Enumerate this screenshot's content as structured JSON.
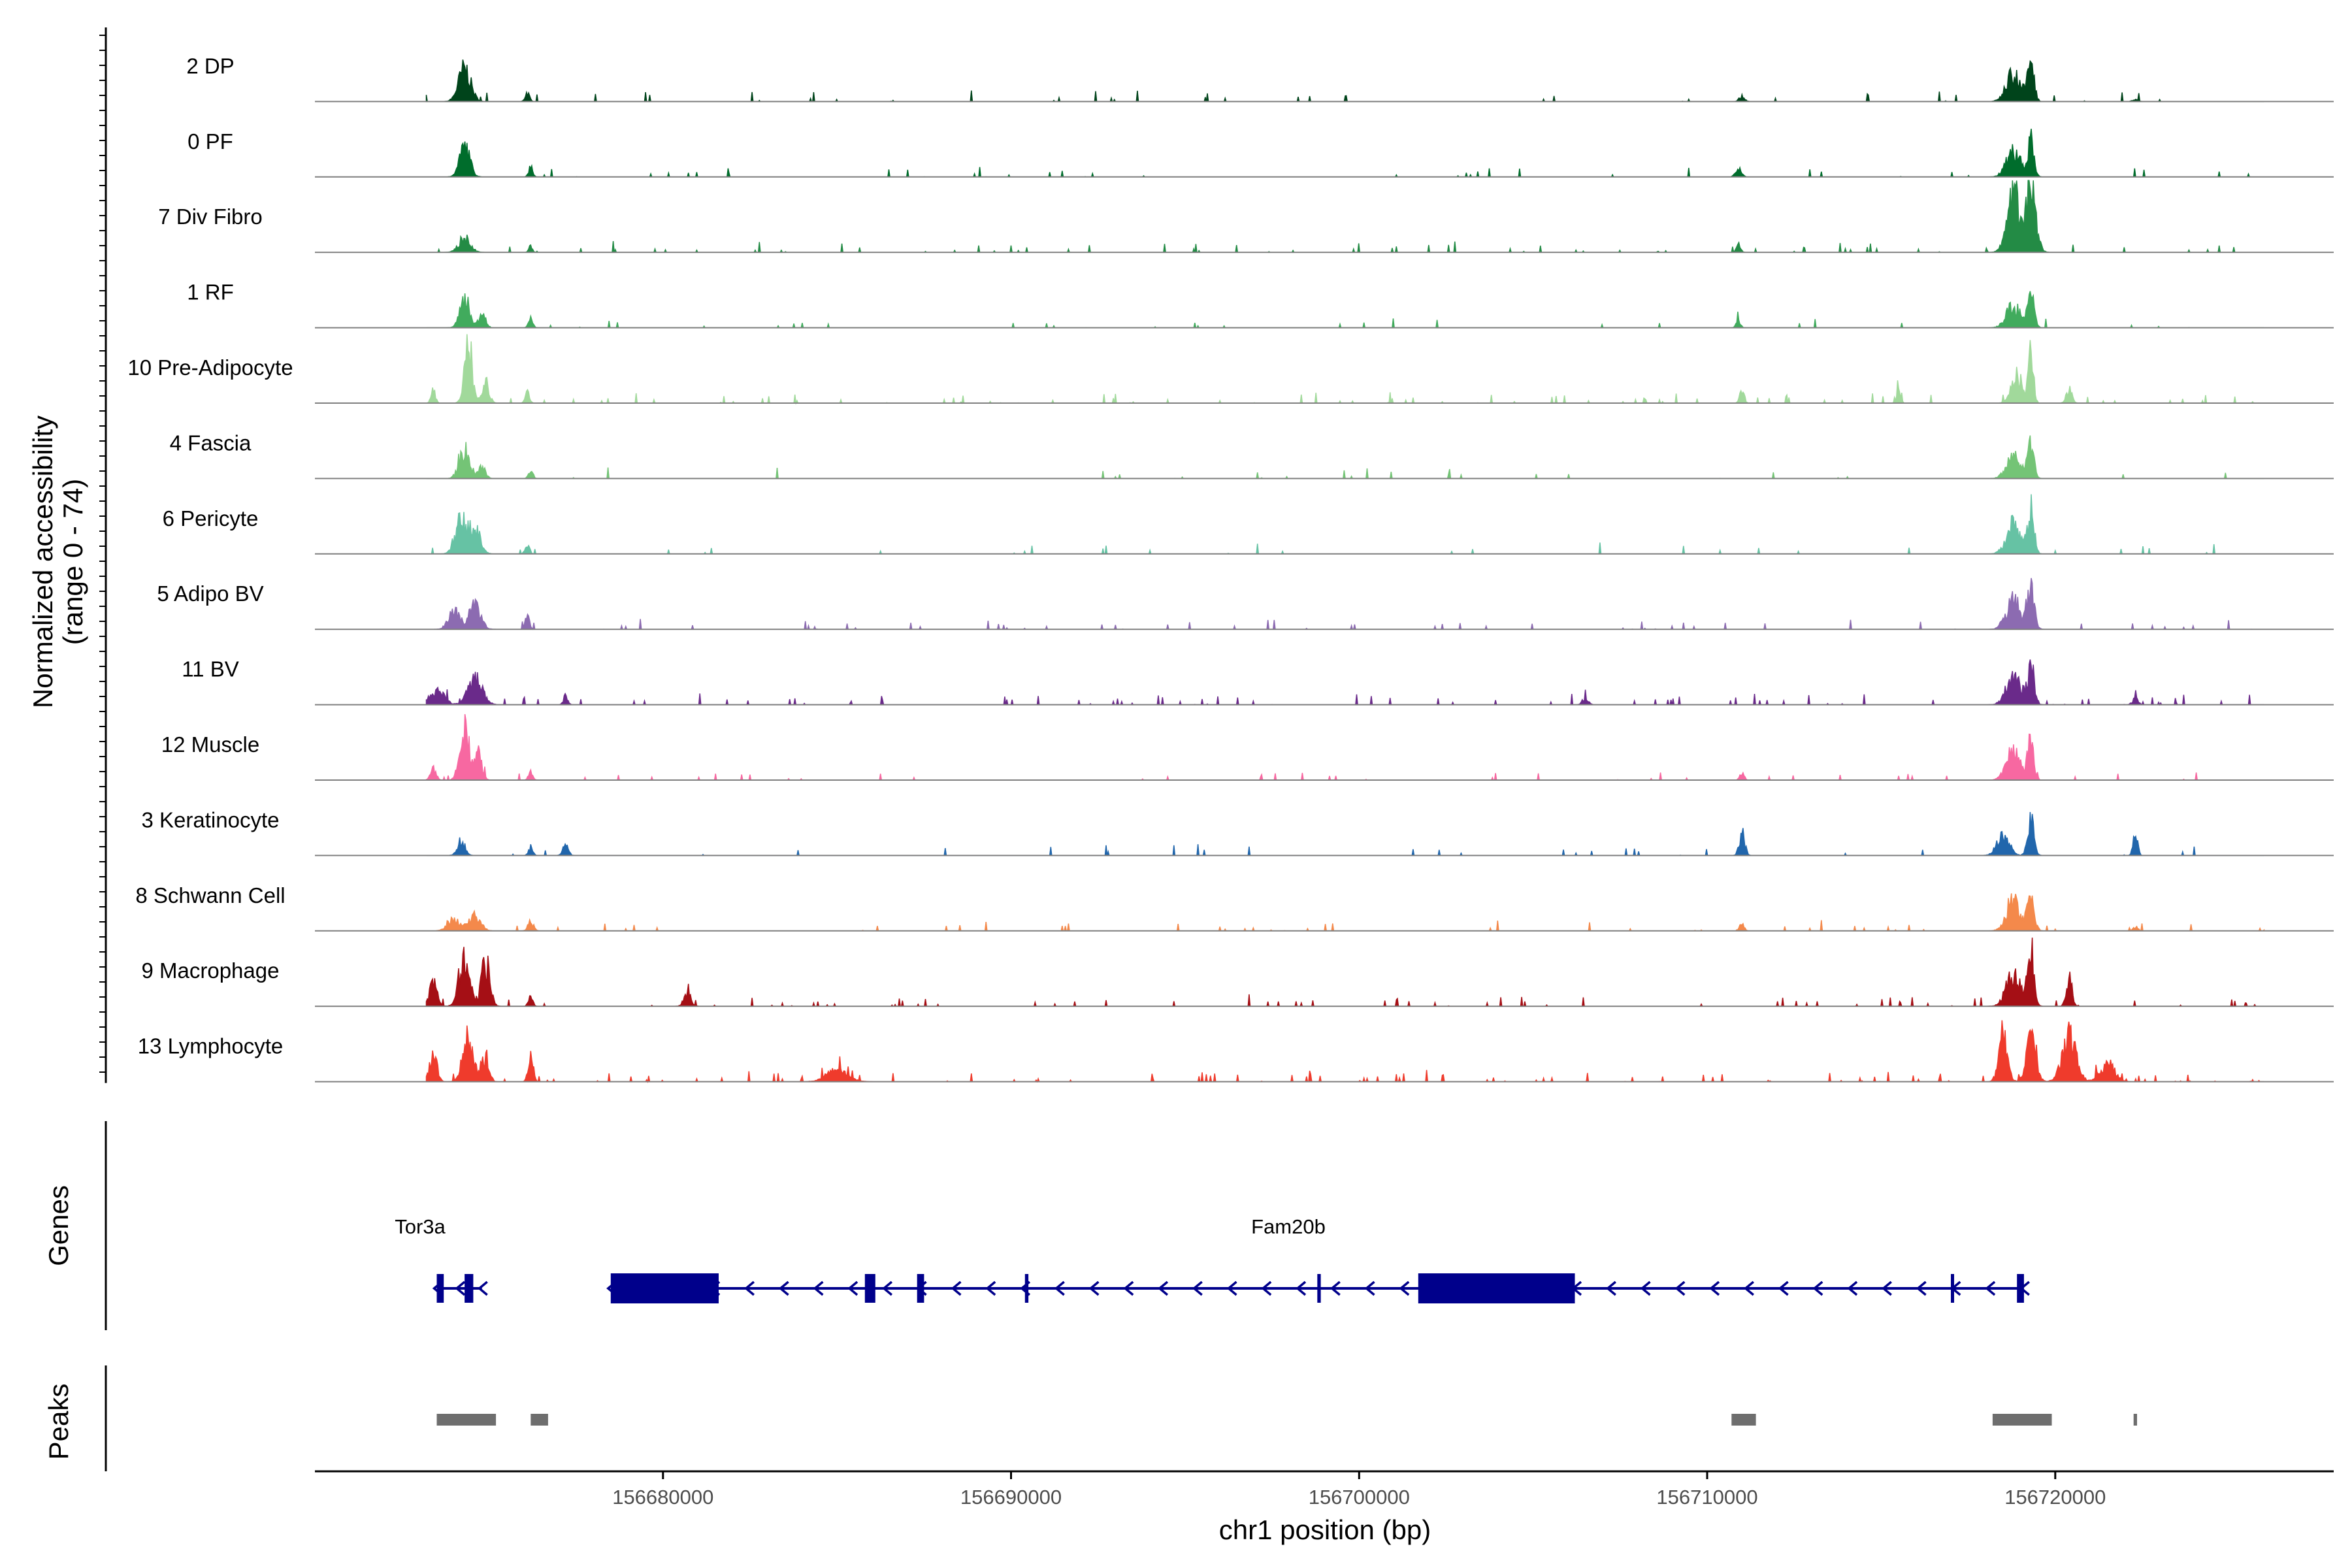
{
  "chart_data": {
    "type": "area",
    "chromosome": "chr1",
    "xlabel": "chr1 position (bp)",
    "ylabel_lines": [
      "Normalized accessibility",
      "(range 0 - 74)"
    ],
    "ylim": [
      0,
      74
    ],
    "xlim": [
      156670000,
      156728000
    ],
    "x_ticks": [
      156680000,
      156690000,
      156700000,
      156710000,
      156720000
    ],
    "x_tick_labels": [
      "156680000",
      "156690000",
      "156700000",
      "156710000",
      "156720000"
    ],
    "grid": false,
    "legend": "none",
    "tracks": [
      {
        "name": "2 DP",
        "color": "#00441b",
        "peaks": [
          [
            156674300,
            0.45,
            170
          ],
          [
            156676100,
            0.12,
            60
          ],
          [
            156711000,
            0.07,
            80
          ],
          [
            156718800,
            0.4,
            200
          ],
          [
            156719300,
            0.55,
            90
          ],
          [
            156722300,
            0.03,
            80
          ]
        ],
        "noise": 0.02
      },
      {
        "name": "0 PF",
        "color": "#006d2c",
        "peaks": [
          [
            156674300,
            0.4,
            150
          ],
          [
            156676200,
            0.13,
            60
          ],
          [
            156710900,
            0.12,
            80
          ],
          [
            156718800,
            0.35,
            200
          ],
          [
            156719300,
            0.5,
            90
          ]
        ],
        "noise": 0.02
      },
      {
        "name": "7 Div Fibro",
        "color": "#238b45",
        "peaks": [
          [
            156674300,
            0.2,
            160
          ],
          [
            156676200,
            0.08,
            50
          ],
          [
            156710900,
            0.1,
            60
          ],
          [
            156718800,
            0.75,
            180
          ],
          [
            156719300,
            0.9,
            140
          ]
        ],
        "noise": 0.045
      },
      {
        "name": "1 RF",
        "color": "#41ab5d",
        "peaks": [
          [
            156674300,
            0.4,
            140
          ],
          [
            156674800,
            0.18,
            100
          ],
          [
            156676200,
            0.14,
            60
          ],
          [
            156710900,
            0.1,
            60
          ],
          [
            156718800,
            0.3,
            200
          ],
          [
            156719300,
            0.48,
            90
          ]
        ],
        "noise": 0.02
      },
      {
        "name": "10 Pre-Adipocyte",
        "color": "#a1d99b",
        "peaks": [
          [
            156673400,
            0.18,
            60
          ],
          [
            156674400,
            0.72,
            110
          ],
          [
            156674900,
            0.3,
            100
          ],
          [
            156676100,
            0.15,
            60
          ],
          [
            156711000,
            0.18,
            60
          ],
          [
            156715500,
            0.15,
            60
          ],
          [
            156718900,
            0.4,
            160
          ],
          [
            156719300,
            0.85,
            70
          ],
          [
            156720400,
            0.18,
            80
          ]
        ],
        "noise": 0.05
      },
      {
        "name": "4 Fascia",
        "color": "#74c476",
        "peaks": [
          [
            156674300,
            0.4,
            150
          ],
          [
            156674800,
            0.15,
            100
          ],
          [
            156676200,
            0.12,
            60
          ],
          [
            156718800,
            0.3,
            200
          ],
          [
            156719300,
            0.5,
            90
          ]
        ],
        "noise": 0.02
      },
      {
        "name": "6 Pericyte",
        "color": "#66c2a4",
        "peaks": [
          [
            156674200,
            0.45,
            160
          ],
          [
            156674600,
            0.35,
            150
          ],
          [
            156676100,
            0.15,
            60
          ],
          [
            156718800,
            0.4,
            200
          ],
          [
            156719300,
            0.6,
            90
          ]
        ],
        "noise": 0.02
      },
      {
        "name": "5 Adipo BV",
        "color": "#8c6bb1",
        "peaks": [
          [
            156674000,
            0.25,
            160
          ],
          [
            156674600,
            0.35,
            160
          ],
          [
            156676100,
            0.18,
            60
          ],
          [
            156718800,
            0.4,
            200
          ],
          [
            156719300,
            0.5,
            100
          ]
        ],
        "noise": 0.03
      },
      {
        "name": "11 BV",
        "color": "#6a2a8a",
        "peaks": [
          [
            156673500,
            0.2,
            200
          ],
          [
            156674600,
            0.35,
            200
          ],
          [
            156677200,
            0.12,
            60
          ],
          [
            156706500,
            0.1,
            80
          ],
          [
            156718800,
            0.4,
            200
          ],
          [
            156719300,
            0.45,
            100
          ],
          [
            156722300,
            0.08,
            80
          ]
        ],
        "noise": 0.05
      },
      {
        "name": "12 Muscle",
        "color": "#f768a1",
        "peaks": [
          [
            156673400,
            0.15,
            80
          ],
          [
            156674300,
            0.75,
            130
          ],
          [
            156674700,
            0.35,
            100
          ],
          [
            156676200,
            0.12,
            60
          ],
          [
            156711000,
            0.1,
            60
          ],
          [
            156718800,
            0.4,
            200
          ],
          [
            156719300,
            0.5,
            90
          ]
        ],
        "noise": 0.03
      },
      {
        "name": "3 Keratinocyte",
        "color": "#2166ac",
        "peaks": [
          [
            156674200,
            0.2,
            110
          ],
          [
            156676200,
            0.12,
            60
          ],
          [
            156677200,
            0.14,
            80
          ],
          [
            156711000,
            0.3,
            80
          ],
          [
            156718500,
            0.25,
            180
          ],
          [
            156719300,
            0.5,
            90
          ],
          [
            156722300,
            0.35,
            60
          ]
        ],
        "noise": 0.02
      },
      {
        "name": "8 Schwann Cell",
        "color": "#f4894b",
        "peaks": [
          [
            156674000,
            0.15,
            180
          ],
          [
            156674600,
            0.2,
            160
          ],
          [
            156676200,
            0.12,
            80
          ],
          [
            156711000,
            0.1,
            60
          ],
          [
            156718800,
            0.4,
            200
          ],
          [
            156719300,
            0.45,
            100
          ],
          [
            156722300,
            0.05,
            80
          ]
        ],
        "noise": 0.03
      },
      {
        "name": "9 Macrophage",
        "color": "#a50f15",
        "peaks": [
          [
            156673400,
            0.3,
            110
          ],
          [
            156674300,
            0.72,
            150
          ],
          [
            156674900,
            0.6,
            120
          ],
          [
            156676200,
            0.15,
            60
          ],
          [
            156680700,
            0.18,
            100
          ],
          [
            156718800,
            0.45,
            200
          ],
          [
            156719300,
            0.75,
            90
          ],
          [
            156720400,
            0.4,
            80
          ]
        ],
        "noise": 0.04
      },
      {
        "name": "13 Lymphocyte",
        "color": "#ef3b2c",
        "peaks": [
          [
            156673400,
            0.4,
            100
          ],
          [
            156674400,
            0.6,
            150
          ],
          [
            156674900,
            0.35,
            100
          ],
          [
            156676200,
            0.35,
            70
          ],
          [
            156685000,
            0.15,
            300
          ],
          [
            156718500,
            0.65,
            120
          ],
          [
            156719300,
            0.55,
            140
          ],
          [
            156720400,
            0.6,
            200
          ],
          [
            156721500,
            0.25,
            200
          ]
        ],
        "noise": 0.06
      }
    ],
    "genes": [
      {
        "name": "Tor3a",
        "start": 156673500,
        "end": 156674800,
        "strand": "-",
        "exons": [
          [
            156673500,
            156673700
          ],
          [
            156674300,
            156674550
          ]
        ]
      },
      {
        "name": "Fam20b",
        "start": 156678500,
        "end": 156719100,
        "strand": "-",
        "exons": [
          [
            156678500,
            156681600
          ],
          [
            156685800,
            156686100
          ],
          [
            156687300,
            156687500
          ],
          [
            156690400,
            156690500
          ],
          [
            156698800,
            156698900
          ],
          [
            156701700,
            156706200
          ],
          [
            156717000,
            156717050
          ],
          [
            156718900,
            156719100
          ]
        ]
      }
    ],
    "peaks": [
      [
        156673500,
        156675200
      ],
      [
        156676200,
        156676700
      ],
      [
        156710700,
        156711400
      ],
      [
        156718200,
        156719900
      ],
      [
        156722250,
        156722350
      ]
    ]
  },
  "panels": {
    "genes_label": "Genes",
    "peaks_label": "Peaks"
  },
  "colors": {
    "gene": "#00008b",
    "peak": "#6e6e6e",
    "baseline": "#7f7f7f",
    "axis": "#000000"
  }
}
